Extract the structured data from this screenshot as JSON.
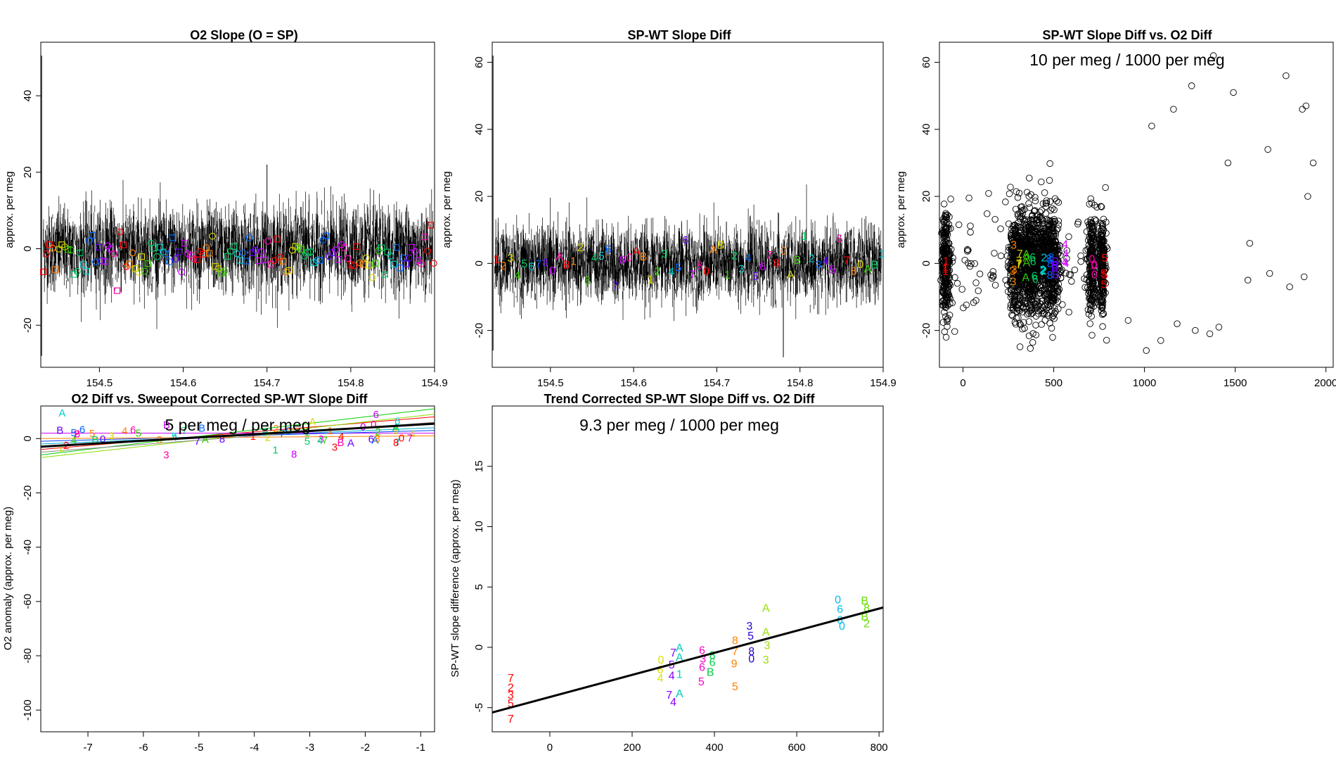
{
  "chart_data": [
    {
      "id": "p1",
      "type": "line",
      "title": "O2 Slope (O = SP)",
      "xlabel": "",
      "ylabel": "approx. per meg",
      "xlim": [
        154.43,
        154.9
      ],
      "ylim": [
        -31,
        54
      ],
      "xticks": [
        154.5,
        154.6,
        154.7,
        154.8,
        154.9
      ],
      "xtick_labels": [
        "154.5",
        "154.6",
        "154.7",
        "154.8",
        "154.9"
      ],
      "yticks": [
        -20,
        0,
        20,
        40
      ],
      "ytick_labels": [
        "-20",
        "0",
        "20",
        "40"
      ],
      "grid": false,
      "series": [
        {
          "x": [
            154.431,
            154.431,
            154.432,
            154.5,
            154.6,
            154.7,
            154.72,
            154.8,
            154.9
          ],
          "y": [
            50.5,
            -28,
            0,
            1,
            -1,
            22,
            8,
            0,
            -2
          ],
          "note_range": [
            -13,
            14
          ]
        }
      ],
      "markers": {
        "x_start": 154.433,
        "x_end": 154.899,
        "count": 128,
        "y_center": -1.5,
        "y_spread": 2.8,
        "symbols": [
          "square",
          "circle"
        ],
        "palette": [
          "#ff0000",
          "#ff8000",
          "#d4d400",
          "#33cc00",
          "#00cc66",
          "#00cccc",
          "#0066ff",
          "#6600ff",
          "#cc00ff",
          "#ff00aa"
        ]
      }
    },
    {
      "id": "p2",
      "type": "line",
      "title": "SP-WT Slope Diff",
      "xlabel": "",
      "ylabel": "approx. per meg",
      "xlim": [
        154.43,
        154.9
      ],
      "ylim": [
        -31,
        66
      ],
      "xticks": [
        154.5,
        154.6,
        154.7,
        154.8,
        154.9
      ],
      "xtick_labels": [
        "154.5",
        "154.6",
        "154.7",
        "154.8",
        "154.9"
      ],
      "yticks": [
        -20,
        0,
        20,
        40,
        60
      ],
      "ytick_labels": [
        "-20",
        "0",
        "20",
        "40",
        "60"
      ],
      "grid": false,
      "series": [
        {
          "x": [
            154.431,
            154.431,
            154.78
          ],
          "y": [
            62,
            -26,
            -28
          ],
          "note_range": [
            -14,
            16
          ]
        }
      ],
      "labels": {
        "chars": [
          "1",
          "2",
          "3",
          "4",
          "5",
          "6",
          "7",
          "8",
          "0",
          "A",
          "B"
        ],
        "x_start": 154.435,
        "x_end": 154.898,
        "count": 56,
        "y_center": 1.5,
        "y_spread": 3.5
      }
    },
    {
      "id": "p3",
      "type": "scatter",
      "title": "SP-WT Slope Diff vs. O2 Diff",
      "annotation": "10 per meg / 1000 per meg",
      "xlabel": "",
      "ylabel": "approx. per meg",
      "xlim": [
        -130,
        2040
      ],
      "ylim": [
        -31,
        66
      ],
      "xticks": [
        0,
        500,
        1000,
        1500,
        2000
      ],
      "xtick_labels": [
        "0",
        "500",
        "1000",
        "1500",
        "2000"
      ],
      "yticks": [
        -20,
        0,
        20,
        40,
        60
      ],
      "ytick_labels": [
        "-20",
        "0",
        "20",
        "40",
        "60"
      ],
      "grid": false,
      "clusters": [
        {
          "x": -95,
          "x_spread": 18,
          "count": 260
        },
        {
          "x": 280,
          "x_spread": 25,
          "count": 180
        },
        {
          "x": 320,
          "x_spread": 30,
          "count": 220
        },
        {
          "x": 370,
          "x_spread": 25,
          "count": 220
        },
        {
          "x": 400,
          "x_spread": 30,
          "count": 200
        },
        {
          "x": 455,
          "x_spread": 30,
          "count": 230
        },
        {
          "x": 500,
          "x_spread": 30,
          "count": 230
        },
        {
          "x": 710,
          "x_spread": 20,
          "count": 200
        },
        {
          "x": 765,
          "x_spread": 12,
          "count": 200
        }
      ],
      "outliers": {
        "x": [
          910,
          1010,
          1040,
          1090,
          1160,
          1180,
          1260,
          1280,
          1360,
          1380,
          1410,
          1460,
          1490,
          1570,
          1580,
          1680,
          1690,
          1780,
          1800,
          1870,
          1880,
          1890,
          1900,
          1930
        ],
        "y": [
          -17,
          -26,
          41,
          -23,
          46,
          -18,
          53,
          -20,
          -21,
          62,
          -19,
          30,
          51,
          -5,
          6,
          34,
          -3,
          56,
          -7,
          46,
          -4,
          47,
          20,
          30
        ]
      },
      "label_x": [
        -95,
        280,
        310,
        350,
        390,
        440,
        480,
        510,
        560,
        720,
        780
      ],
      "label_chars": [
        "1",
        "3",
        "7",
        "A",
        "6",
        "2",
        "8",
        "B",
        "4",
        "0",
        "5"
      ]
    },
    {
      "id": "p4",
      "type": "line",
      "title": "O2 Diff vs. Sweepout Corrected SP-WT Slope Diff",
      "annotation": "5 per meg / per meg",
      "xlabel": "",
      "ylabel": "O2 anomaly (approx. per meg)",
      "xlim": [
        -7.85,
        -0.75
      ],
      "ylim": [
        -108,
        12
      ],
      "xticks": [
        -7,
        -6,
        -5,
        -4,
        -3,
        -2,
        -1
      ],
      "xtick_labels": [
        "-7",
        "-6",
        "-5",
        "-4",
        "-3",
        "-2",
        "-1"
      ],
      "yticks": [
        -100,
        -80,
        -60,
        -40,
        -20,
        0
      ],
      "ytick_labels": [
        "-100",
        "-80",
        "-60",
        "-40",
        "-20",
        "0"
      ],
      "grid": false,
      "fit_line": {
        "x": [
          -7.85,
          -0.75
        ],
        "y": [
          -3,
          5.5
        ]
      },
      "group_lines": [
        {
          "x": [
            -7.85,
            -0.75
          ],
          "y": [
            -4,
            8
          ]
        },
        {
          "x": [
            -7.85,
            -0.75
          ],
          "y": [
            -6,
            11
          ]
        },
        {
          "x": [
            -7.85,
            -0.75
          ],
          "y": [
            -2,
            4
          ]
        },
        {
          "x": [
            -7.85,
            -0.75
          ],
          "y": [
            -7,
            9
          ]
        },
        {
          "x": [
            -7.85,
            -0.75
          ],
          "y": [
            2,
            2
          ]
        },
        {
          "x": [
            -7.85,
            -0.75
          ],
          "y": [
            -1,
            3
          ]
        },
        {
          "x": [
            -7.85,
            -0.75
          ],
          "y": [
            0,
            1
          ]
        },
        {
          "x": [
            -7.85,
            -0.75
          ],
          "y": [
            -5,
            6
          ]
        }
      ],
      "labels": {
        "chars": [
          "4",
          "5",
          "A",
          "7",
          "B",
          "6",
          "0",
          "8",
          "3",
          "2",
          "1"
        ],
        "x_start": -7.6,
        "x_end": -0.9,
        "count": 60,
        "y_center": 1.5,
        "y_spread": 3
      }
    },
    {
      "id": "p5",
      "type": "scatter",
      "title": "Trend Corrected SP-WT Slope Diff vs. O2 Diff",
      "annotation": "9.3 per meg / 1000 per meg",
      "xlabel": "",
      "ylabel": "SP-WT slope difference (approx. per meg)",
      "xlim": [
        -140,
        810
      ],
      "ylim": [
        -7,
        20
      ],
      "xticks": [
        0,
        200,
        400,
        600,
        800
      ],
      "xtick_labels": [
        "0",
        "200",
        "400",
        "600",
        "800"
      ],
      "yticks": [
        -5,
        0,
        5,
        10,
        15
      ],
      "ytick_labels": [
        "-5",
        "0",
        "5",
        "10",
        "15"
      ],
      "grid": false,
      "fit_line": {
        "x": [
          -140,
          810
        ],
        "y": [
          -5.4,
          3.3
        ]
      },
      "points": [
        {
          "x": -95,
          "y": -2.5,
          "label": "7",
          "color": "#ff0000"
        },
        {
          "x": -95,
          "y": -3.3,
          "label": "2",
          "color": "#ff0000"
        },
        {
          "x": -95,
          "y": -3.9,
          "label": "3",
          "color": "#ff0000"
        },
        {
          "x": -95,
          "y": -4.6,
          "label": "5",
          "color": "#ff0000"
        },
        {
          "x": -95,
          "y": -5.9,
          "label": "7",
          "color": "#ff0000"
        },
        {
          "x": 270,
          "y": -1.0,
          "label": "0",
          "color": "#dddd00"
        },
        {
          "x": 268,
          "y": -1.8,
          "label": "6",
          "color": "#dddd00"
        },
        {
          "x": 268,
          "y": -2.5,
          "label": "4",
          "color": "#dddd00"
        },
        {
          "x": 300,
          "y": -0.4,
          "label": "7",
          "color": "#8800ff"
        },
        {
          "x": 296,
          "y": -1.4,
          "label": "5",
          "color": "#8800ff"
        },
        {
          "x": 296,
          "y": -2.3,
          "label": "4",
          "color": "#8800ff"
        },
        {
          "x": 290,
          "y": -3.9,
          "label": "7",
          "color": "#8800ff"
        },
        {
          "x": 300,
          "y": -4.5,
          "label": "4",
          "color": "#8800ff"
        },
        {
          "x": 315,
          "y": 0.0,
          "label": "A",
          "color": "#00ccbb"
        },
        {
          "x": 315,
          "y": -0.8,
          "label": "A",
          "color": "#00ccbb"
        },
        {
          "x": 315,
          "y": -2.2,
          "label": "1",
          "color": "#00ccbb"
        },
        {
          "x": 315,
          "y": -3.8,
          "label": "A",
          "color": "#00ccbb"
        },
        {
          "x": 370,
          "y": -0.2,
          "label": "6",
          "color": "#ff00cc"
        },
        {
          "x": 372,
          "y": -0.9,
          "label": "3",
          "color": "#ff00cc"
        },
        {
          "x": 370,
          "y": -1.6,
          "label": "6",
          "color": "#ff00cc"
        },
        {
          "x": 368,
          "y": -2.8,
          "label": "5",
          "color": "#ff00cc"
        },
        {
          "x": 395,
          "y": -0.6,
          "label": "8",
          "color": "#00cc44"
        },
        {
          "x": 395,
          "y": -1.2,
          "label": "6",
          "color": "#00cc44"
        },
        {
          "x": 390,
          "y": -2.0,
          "label": "B",
          "color": "#00cc44"
        },
        {
          "x": 450,
          "y": 0.6,
          "label": "8",
          "color": "#ff8000"
        },
        {
          "x": 450,
          "y": -0.3,
          "label": "7",
          "color": "#ff8000"
        },
        {
          "x": 448,
          "y": -1.3,
          "label": "9",
          "color": "#ff8000"
        },
        {
          "x": 450,
          "y": -3.2,
          "label": "5",
          "color": "#ff8000"
        },
        {
          "x": 485,
          "y": 1.8,
          "label": "3",
          "color": "#2200cc"
        },
        {
          "x": 488,
          "y": 1.0,
          "label": "5",
          "color": "#2200cc"
        },
        {
          "x": 490,
          "y": -0.3,
          "label": "8",
          "color": "#2200cc"
        },
        {
          "x": 490,
          "y": -0.9,
          "label": "0",
          "color": "#2200cc"
        },
        {
          "x": 525,
          "y": 3.3,
          "label": "A",
          "color": "#99dd00"
        },
        {
          "x": 525,
          "y": 1.3,
          "label": "A",
          "color": "#99dd00"
        },
        {
          "x": 528,
          "y": 0.2,
          "label": "3",
          "color": "#99dd00"
        },
        {
          "x": 525,
          "y": -1.0,
          "label": "3",
          "color": "#99dd00"
        },
        {
          "x": 700,
          "y": 4.0,
          "label": "0",
          "color": "#00bbee"
        },
        {
          "x": 705,
          "y": 3.2,
          "label": "6",
          "color": "#00bbee"
        },
        {
          "x": 705,
          "y": 2.3,
          "label": "6",
          "color": "#00bbee"
        },
        {
          "x": 710,
          "y": 1.8,
          "label": "0",
          "color": "#00bbee"
        },
        {
          "x": 765,
          "y": 3.9,
          "label": "B",
          "color": "#66dd00"
        },
        {
          "x": 770,
          "y": 3.3,
          "label": "8",
          "color": "#66dd00"
        },
        {
          "x": 765,
          "y": 2.6,
          "label": "B",
          "color": "#66dd00"
        },
        {
          "x": 770,
          "y": 2.0,
          "label": "2",
          "color": "#66dd00"
        }
      ]
    }
  ]
}
